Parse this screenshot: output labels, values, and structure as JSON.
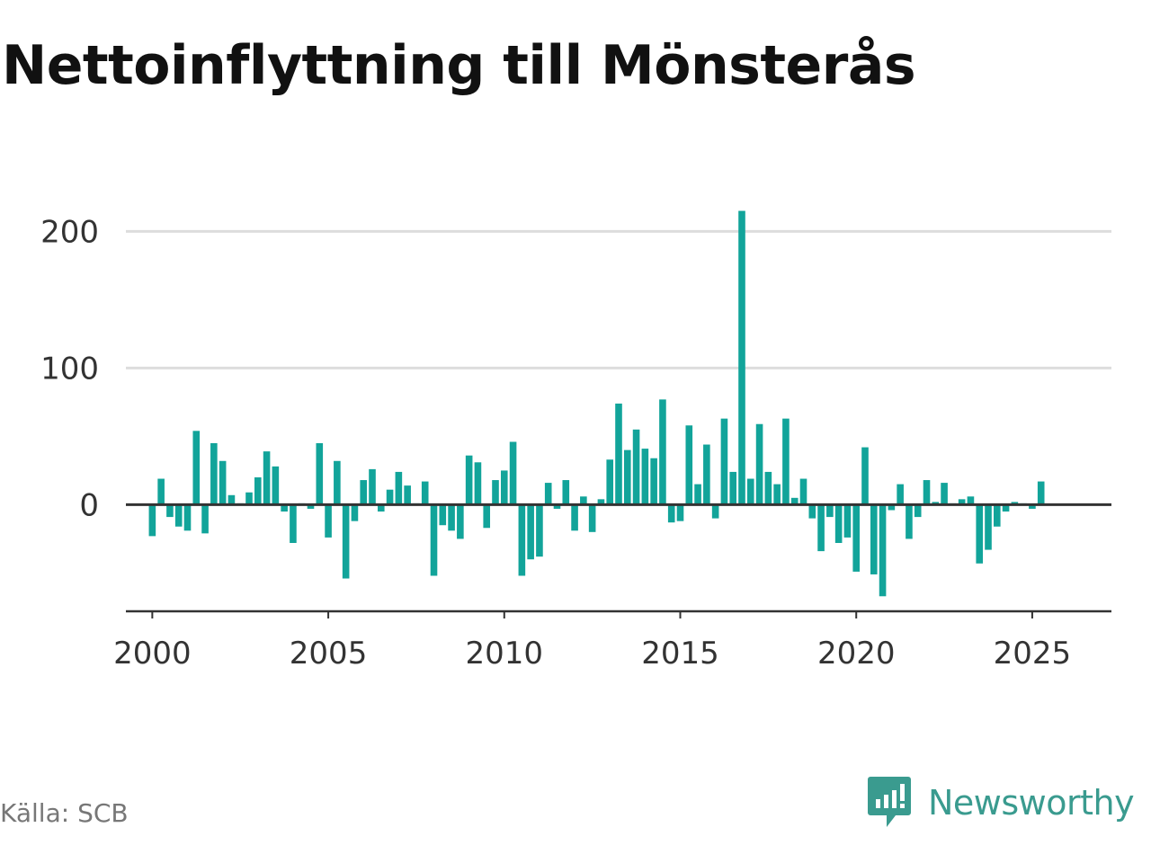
{
  "title": "Nettoinflyttning till Mönsterås",
  "source": "Källa: SCB",
  "brand": {
    "name": "Newsworthy",
    "color": "#3a9b8f",
    "icon": "newsworthy-logo-icon"
  },
  "colors": {
    "bar": "#12a49a",
    "grid": "#dddddd",
    "axis": "#333333"
  },
  "chart_data": {
    "type": "bar",
    "title": "Nettoinflyttning till Mönsterås",
    "xlabel": "",
    "ylabel": "",
    "xlim": [
      1999.25,
      2027.25
    ],
    "ylim": [
      -78,
      218
    ],
    "yticks": [
      0,
      100,
      200
    ],
    "xticks": [
      2000,
      2005,
      2010,
      2015,
      2020,
      2025
    ],
    "x_start": 2000.0,
    "x_step": 0.25,
    "grid": true,
    "values": [
      -23,
      19,
      -9,
      -16,
      -19,
      54,
      -21,
      45,
      32,
      7,
      1,
      9,
      20,
      39,
      28,
      -5,
      -28,
      1,
      -3,
      45,
      -24,
      32,
      -54,
      -12,
      18,
      26,
      -5,
      11,
      24,
      14,
      1,
      17,
      -52,
      -15,
      -19,
      -25,
      36,
      31,
      -17,
      18,
      25,
      46,
      -52,
      -40,
      -38,
      16,
      -3,
      18,
      -19,
      6,
      -20,
      4,
      33,
      74,
      40,
      55,
      41,
      34,
      77,
      -13,
      -12,
      58,
      15,
      44,
      -10,
      63,
      24,
      215,
      19,
      59,
      24,
      15,
      63,
      5,
      19,
      -10,
      -34,
      -9,
      -28,
      -24,
      -49,
      42,
      -51,
      -67,
      -4,
      15,
      -25,
      -9,
      18,
      2,
      16,
      1,
      4,
      6,
      -43,
      -33,
      -16,
      -5,
      2,
      1,
      -3,
      17
    ]
  }
}
